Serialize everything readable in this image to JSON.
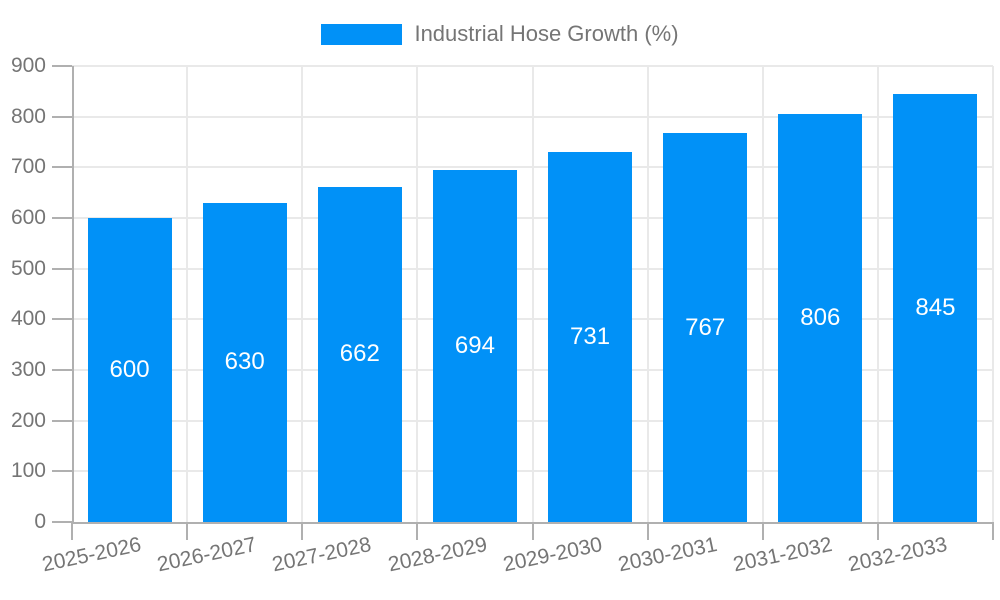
{
  "chart_data": {
    "type": "bar",
    "title": "Industrial Hose Growth (%)",
    "categories": [
      "2025-2026",
      "2026-2027",
      "2027-2028",
      "2028-2029",
      "2029-2030",
      "2030-2031",
      "2031-2032",
      "2032-2033"
    ],
    "values": [
      600,
      630,
      662,
      694,
      731,
      767,
      806,
      845
    ],
    "value_labels": [
      "600",
      "630",
      "662",
      "694",
      "731",
      "767",
      "806",
      "845"
    ],
    "xlabel": "",
    "ylabel": "",
    "ylim": [
      0,
      900
    ],
    "ytick_step": 100,
    "yticks": [
      0,
      100,
      200,
      300,
      400,
      500,
      600,
      700,
      800,
      900
    ],
    "grid": true,
    "legend_position": "top-center",
    "colors": {
      "bar": "#0191F7",
      "grid": "#E9E9E9",
      "axis": "#B0B0B0",
      "tick_label": "#757575",
      "value_label": "#FFFFFF",
      "background": "#FFFFFF"
    }
  }
}
